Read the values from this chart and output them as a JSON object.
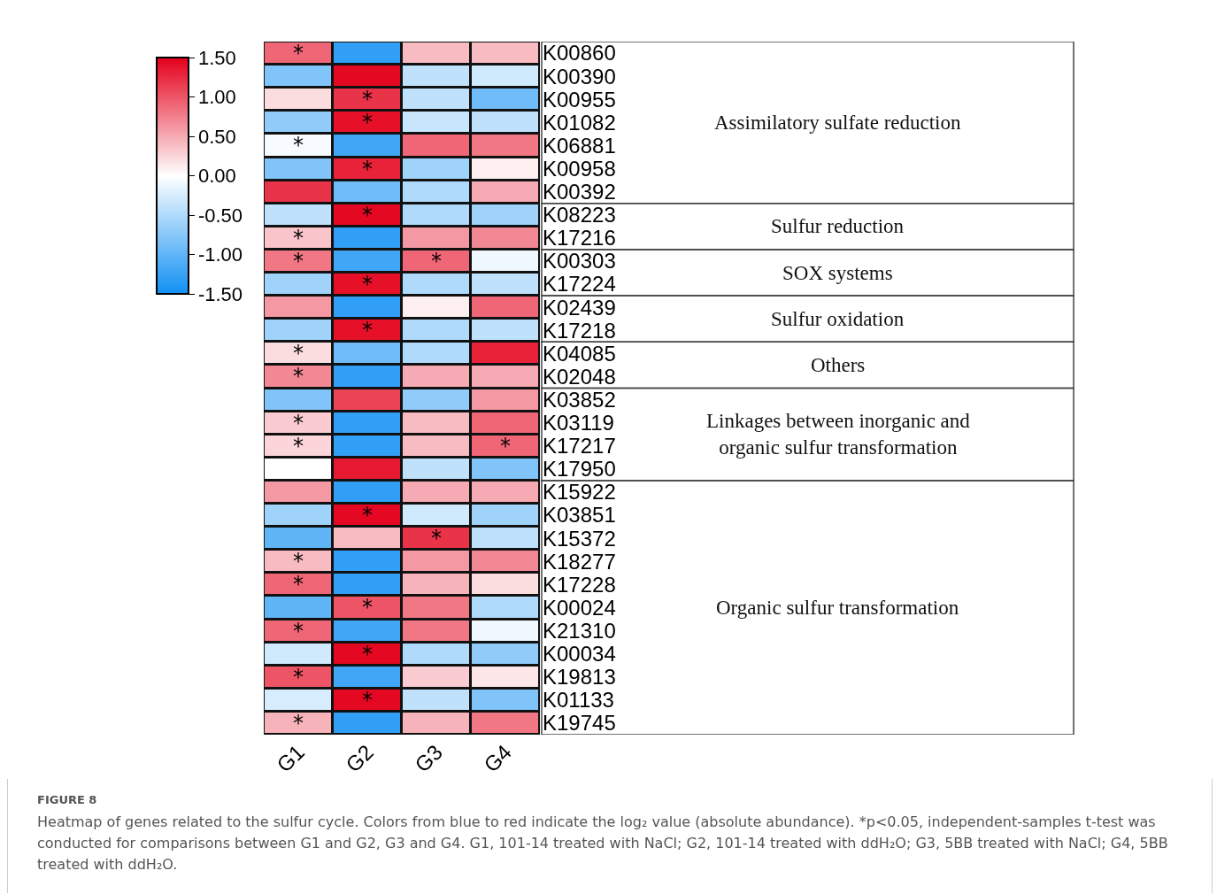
{
  "chart_data": {
    "type": "heatmap",
    "categories": [
      "G1",
      "G2",
      "G3",
      "G4"
    ],
    "y_categories": [
      "K00860",
      "K00390",
      "K00955",
      "K01082",
      "K06881",
      "K00958",
      "K00392",
      "K08223",
      "K17216",
      "K00303",
      "K17224",
      "K02439",
      "K17218",
      "K04085",
      "K02048",
      "K03852",
      "K03119",
      "K17217",
      "K17950",
      "K15922",
      "K03851",
      "K15372",
      "K18277",
      "K17228",
      "K00024",
      "K21310",
      "K00034",
      "K19813",
      "K01133",
      "K19745"
    ],
    "cells": [
      [
        0.9,
        -1.3,
        0.4,
        0.4
      ],
      [
        -0.8,
        1.45,
        -0.4,
        -0.3
      ],
      [
        0.2,
        1.2,
        -0.4,
        -0.9
      ],
      [
        -0.7,
        1.4,
        -0.35,
        -0.4
      ],
      [
        -0.05,
        -1.2,
        0.9,
        0.8
      ],
      [
        -0.8,
        1.3,
        -0.6,
        0.1
      ],
      [
        1.2,
        -0.9,
        -0.5,
        0.5
      ],
      [
        -0.4,
        1.45,
        -0.5,
        -0.6
      ],
      [
        0.35,
        -1.3,
        0.6,
        0.7
      ],
      [
        0.8,
        -1.2,
        0.9,
        -0.1
      ],
      [
        -0.6,
        1.4,
        -0.5,
        -0.4
      ],
      [
        0.6,
        -1.3,
        0.1,
        0.9
      ],
      [
        -0.6,
        1.4,
        -0.5,
        -0.4
      ],
      [
        0.2,
        -0.9,
        -0.5,
        1.3
      ],
      [
        0.7,
        -1.3,
        0.5,
        0.5
      ],
      [
        -0.8,
        1.1,
        -0.7,
        0.6
      ],
      [
        0.3,
        -1.3,
        0.4,
        0.9
      ],
      [
        0.25,
        -1.3,
        0.4,
        0.9
      ],
      [
        0.0,
        1.35,
        -0.4,
        -0.8
      ],
      [
        0.6,
        -1.3,
        0.5,
        0.5
      ],
      [
        -0.6,
        1.45,
        -0.3,
        -0.6
      ],
      [
        -1.0,
        0.4,
        1.2,
        -0.4
      ],
      [
        0.4,
        -1.3,
        0.6,
        0.7
      ],
      [
        0.9,
        -1.3,
        0.45,
        0.2
      ],
      [
        -1.0,
        1.0,
        0.8,
        -0.5
      ],
      [
        0.9,
        -1.2,
        0.8,
        -0.1
      ],
      [
        -0.3,
        1.45,
        -0.5,
        -0.7
      ],
      [
        1.0,
        -1.2,
        0.3,
        0.15
      ],
      [
        -0.25,
        1.45,
        -0.4,
        -0.8
      ],
      [
        0.45,
        -1.3,
        0.45,
        0.8
      ]
    ],
    "cell_labels": [
      [
        "*",
        null,
        null,
        null
      ],
      [
        null,
        null,
        null,
        null
      ],
      [
        null,
        "*",
        null,
        null
      ],
      [
        null,
        "*",
        null,
        null
      ],
      [
        "*",
        null,
        null,
        null
      ],
      [
        null,
        "*",
        null,
        null
      ],
      [
        null,
        null,
        null,
        null
      ],
      [
        null,
        "*",
        null,
        null
      ],
      [
        "*",
        null,
        null,
        null
      ],
      [
        "*",
        null,
        "*",
        null
      ],
      [
        null,
        "*",
        null,
        null
      ],
      [
        null,
        null,
        null,
        null
      ],
      [
        null,
        "*",
        null,
        null
      ],
      [
        "*",
        null,
        null,
        null
      ],
      [
        "*",
        null,
        null,
        null
      ],
      [
        null,
        null,
        null,
        null
      ],
      [
        "*",
        null,
        null,
        null
      ],
      [
        "*",
        null,
        null,
        "*"
      ],
      [
        null,
        null,
        null,
        null
      ],
      [
        null,
        null,
        null,
        null
      ],
      [
        null,
        "*",
        null,
        null
      ],
      [
        null,
        null,
        "*",
        null
      ],
      [
        "*",
        null,
        null,
        null
      ],
      [
        "*",
        null,
        null,
        null
      ],
      [
        null,
        "*",
        null,
        null
      ],
      [
        "*",
        null,
        null,
        null
      ],
      [
        null,
        "*",
        null,
        null
      ],
      [
        "*",
        null,
        null,
        null
      ],
      [
        null,
        "*",
        null,
        null
      ],
      [
        "*",
        null,
        null,
        null
      ]
    ],
    "clim": [
      -1.5,
      1.5
    ],
    "cticks": [
      {
        "value": 1.5,
        "label": "1.50"
      },
      {
        "value": 1.0,
        "label": "1.00"
      },
      {
        "value": 0.5,
        "label": "0.50"
      },
      {
        "value": 0.0,
        "label": "0.00"
      },
      {
        "value": -0.5,
        "label": "-0.50"
      },
      {
        "value": -1.0,
        "label": "-1.00"
      },
      {
        "value": -1.5,
        "label": "-1.50"
      }
    ],
    "annotations": [
      "Assimilatory sulfate reduction",
      "Sulfur reduction",
      "SOX systems",
      "Sulfur oxidation",
      "Others",
      "Linkages between inorganic and organic sulfur transformation",
      "Organic sulfur transformation",
      "FIGURE 8",
      "Heatmap of genes related to the sulfur cycle. Colors from blue to red indicate the log₂ value (absolute abundance). *p<0.05, independent-samples t-test was conducted for comparisons between G1 and G2, G3 and G4. G1, 101-14 treated with NaCl; G2, 101-14 treated with ddH₂O; G3, 5BB treated with NaCl; G4, 5BB treated with ddH₂O."
    ]
  }
}
